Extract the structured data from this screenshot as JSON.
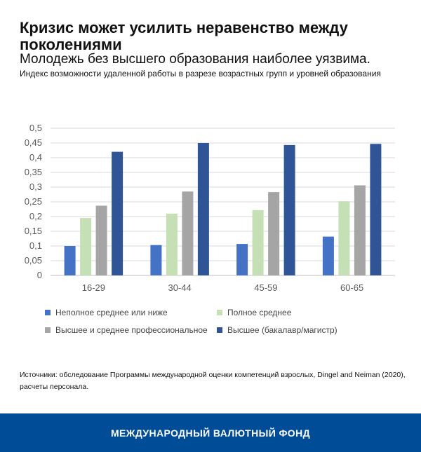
{
  "title": "Кризис может усилить неравенство между поколениями",
  "subtitle": "Молодежь без высшего образования наиболее уязвима.",
  "description": "Индекс возможности удаленной работы в разрезе возрастных групп и уровней образования",
  "source": "Источники: обследование Программы международной оценки компетенций взрослых, Dingel and Neiman (2020), расчеты персонала.",
  "footer": "МЕЖДУНАРОДНЫЙ ВАЛЮТНЫЙ ФОНД",
  "colors": {
    "series": [
      "#4472c4",
      "#c5e0b4",
      "#a5a5a5",
      "#2f5597"
    ],
    "footer_bg": "#004c97"
  },
  "chart_data": {
    "type": "bar",
    "categories": [
      "16-29",
      "30-44",
      "45-59",
      "60-65"
    ],
    "series": [
      {
        "name": "Неполное среднее или ниже",
        "values": [
          0.1,
          0.103,
          0.107,
          0.132
        ]
      },
      {
        "name": "Полное среднее",
        "values": [
          0.195,
          0.21,
          0.222,
          0.252
        ]
      },
      {
        "name": "Высшее и среднее профессиональное",
        "values": [
          0.237,
          0.285,
          0.283,
          0.306
        ]
      },
      {
        "name": "Высшее (бакалавр/магистр)",
        "values": [
          0.42,
          0.45,
          0.443,
          0.447
        ]
      }
    ],
    "ylim": [
      0,
      0.5
    ],
    "yticks": [
      "0",
      "0,05",
      "0,1",
      "0,15",
      "0,2",
      "0,25",
      "0,3",
      "0,35",
      "0,4",
      "0,45",
      "0,5"
    ],
    "grid": true,
    "legend_position": "bottom"
  }
}
